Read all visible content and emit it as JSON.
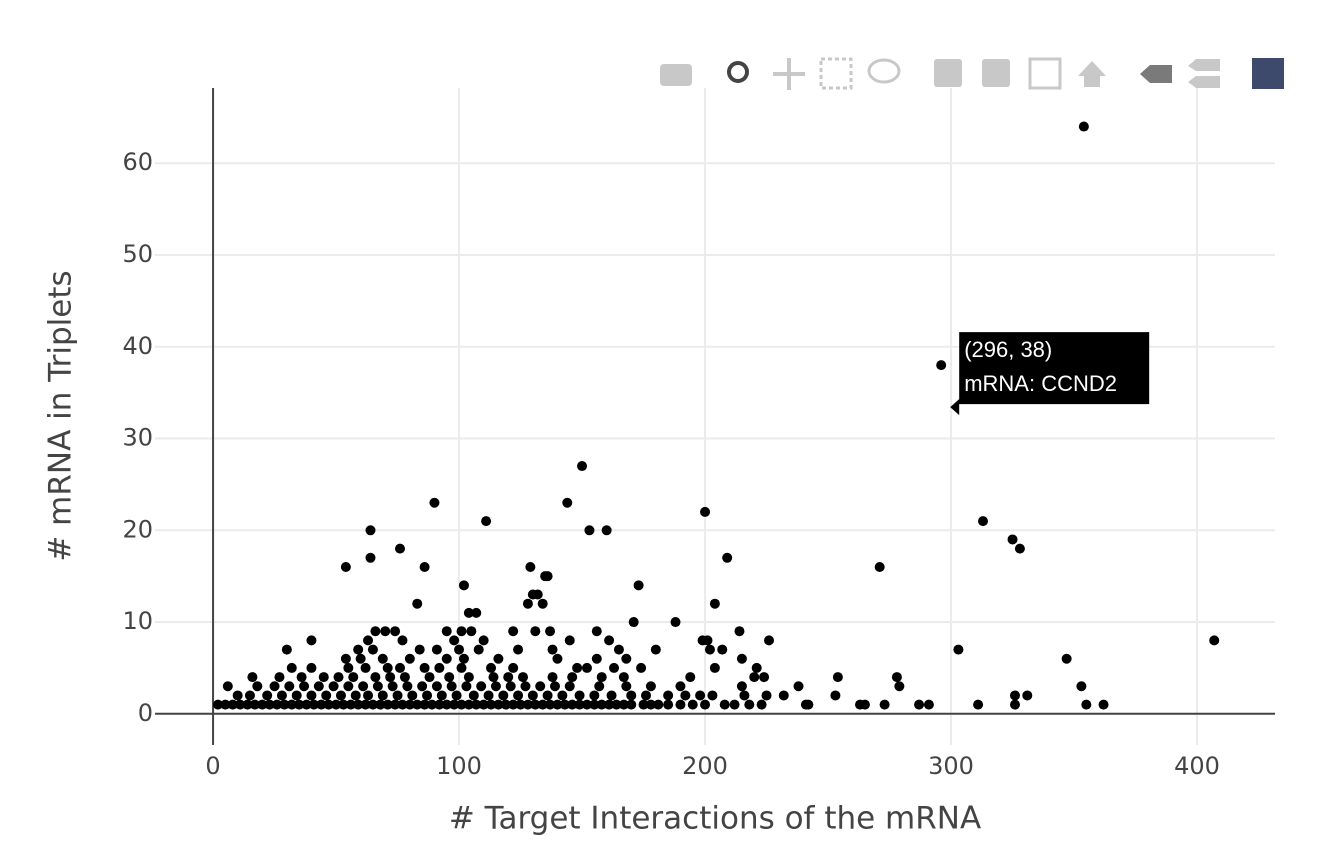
{
  "chart_data": {
    "type": "scatter",
    "xlabel": "# Target Interactions of the mRNA",
    "ylabel": "# mRNA in Triplets",
    "xlim": [
      -23.6,
      431.7
    ],
    "ylim": [
      -3.4,
      68.2
    ],
    "xticks": [
      0,
      100,
      200,
      300,
      400
    ],
    "yticks": [
      0,
      10,
      20,
      30,
      40,
      50,
      60
    ],
    "grid": true,
    "series": [
      {
        "color": "#000000",
        "x": [
          354,
          296,
          150,
          144,
          90,
          200,
          111,
          313,
          64,
          153,
          160,
          325,
          328,
          76,
          64,
          209,
          54,
          86,
          129,
          271,
          135,
          136,
          102,
          173,
          104,
          107,
          128,
          134,
          83,
          204,
          132,
          130,
          171,
          188,
          407,
          303,
          347,
          353,
          355,
          362,
          311,
          326,
          331,
          326,
          278,
          279,
          254,
          253,
          273,
          263,
          265,
          287,
          291,
          238,
          242,
          232,
          226,
          214,
          199,
          201,
          202,
          66,
          70,
          74,
          95,
          101,
          105,
          122,
          131,
          137,
          156,
          2,
          5,
          8,
          11,
          14,
          17,
          20,
          23,
          26,
          29,
          32,
          35,
          38,
          41,
          44,
          47,
          50,
          53,
          56,
          59,
          62,
          65,
          68,
          71,
          74,
          77,
          80,
          83,
          86,
          89,
          92,
          95,
          98,
          101,
          104,
          107,
          110,
          113,
          116,
          119,
          122,
          125,
          128,
          131,
          134,
          137,
          140,
          143,
          146,
          149,
          152,
          155,
          158,
          161,
          164,
          167,
          170,
          175,
          178,
          181,
          185,
          190,
          195,
          200,
          208,
          212,
          218,
          223,
          241,
          10,
          15,
          22,
          28,
          34,
          40,
          46,
          52,
          58,
          63,
          69,
          75,
          81,
          87,
          93,
          99,
          106,
          112,
          118,
          124,
          130,
          136,
          142,
          149,
          155,
          162,
          170,
          176,
          185,
          192,
          198,
          203,
          216,
          225,
          6,
          18,
          25,
          31,
          37,
          43,
          49,
          55,
          61,
          67,
          73,
          79,
          85,
          91,
          97,
          103,
          109,
          115,
          121,
          127,
          133,
          139,
          145,
          157,
          168,
          178,
          190,
          215,
          16,
          27,
          36,
          45,
          51,
          57,
          66,
          72,
          78,
          88,
          96,
          104,
          114,
          120,
          126,
          138,
          146,
          158,
          167,
          194,
          220,
          224,
          32,
          40,
          55,
          62,
          71,
          76,
          86,
          92,
          101,
          113,
          122,
          148,
          152,
          163,
          174,
          204,
          221,
          54,
          60,
          69,
          80,
          95,
          102,
          116,
          140,
          156,
          168,
          215,
          30,
          59,
          65,
          84,
          91,
          100,
          108,
          124,
          138,
          165,
          180,
          207,
          40,
          63,
          77,
          98,
          110,
          145,
          161
        ],
        "y": [
          64,
          38,
          27,
          23,
          23,
          22,
          21,
          21,
          20,
          20,
          20,
          19,
          18,
          18,
          17,
          17,
          16,
          16,
          16,
          16,
          15,
          15,
          14,
          14,
          11,
          11,
          12,
          12,
          12,
          12,
          13,
          13,
          10,
          10,
          8,
          7,
          6,
          3,
          1,
          1,
          1,
          2,
          2,
          1,
          4,
          3,
          4,
          2,
          1,
          1,
          1,
          1,
          1,
          3,
          1,
          2,
          8,
          9,
          8,
          8,
          7,
          9,
          9,
          9,
          9,
          9,
          9,
          9,
          9,
          9,
          9,
          1,
          1,
          1,
          1,
          1,
          1,
          1,
          1,
          1,
          1,
          1,
          1,
          1,
          1,
          1,
          1,
          1,
          1,
          1,
          1,
          1,
          1,
          1,
          1,
          1,
          1,
          1,
          1,
          1,
          1,
          1,
          1,
          1,
          1,
          1,
          1,
          1,
          1,
          1,
          1,
          1,
          1,
          1,
          1,
          1,
          1,
          1,
          1,
          1,
          1,
          1,
          1,
          1,
          1,
          1,
          1,
          1,
          1,
          1,
          1,
          1,
          1,
          1,
          1,
          1,
          1,
          1,
          1,
          1,
          2,
          2,
          2,
          2,
          2,
          2,
          2,
          2,
          2,
          2,
          2,
          2,
          2,
          2,
          2,
          2,
          2,
          2,
          2,
          2,
          2,
          2,
          2,
          2,
          2,
          2,
          2,
          2,
          2,
          2,
          2,
          2,
          2,
          2,
          3,
          3,
          3,
          3,
          3,
          3,
          3,
          3,
          3,
          3,
          3,
          3,
          3,
          3,
          3,
          3,
          3,
          3,
          3,
          3,
          3,
          3,
          3,
          3,
          3,
          3,
          3,
          3,
          4,
          4,
          4,
          4,
          4,
          4,
          4,
          4,
          4,
          4,
          4,
          4,
          4,
          4,
          4,
          4,
          4,
          4,
          4,
          4,
          4,
          4,
          5,
          5,
          5,
          5,
          5,
          5,
          5,
          5,
          5,
          5,
          5,
          5,
          5,
          5,
          5,
          5,
          5,
          6,
          6,
          6,
          6,
          6,
          6,
          6,
          6,
          6,
          6,
          6,
          7,
          7,
          7,
          7,
          7,
          7,
          7,
          7,
          7,
          7,
          7,
          7,
          8,
          8,
          8,
          8,
          8,
          8,
          8
        ]
      }
    ],
    "hover": {
      "point": 1,
      "lines": [
        "(296, 38)",
        "mRNA: CCND2"
      ]
    }
  }
}
